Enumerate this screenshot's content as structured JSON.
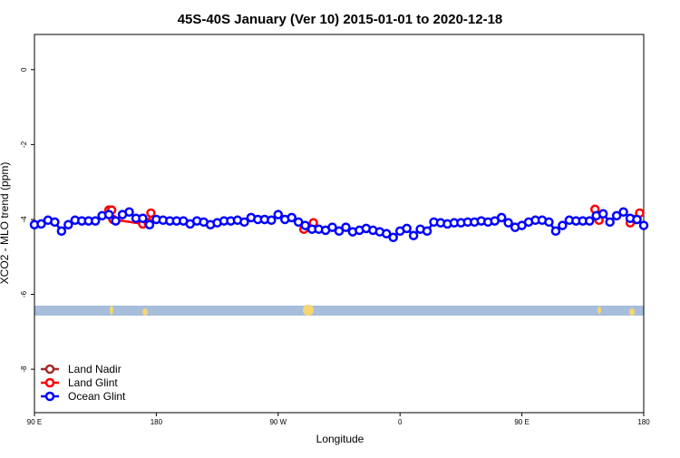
{
  "chart_data": {
    "type": "line",
    "title": "45S-40S January (Ver 10)   2015-01-01 to 2020-12-18",
    "x_label": "Longitude",
    "y_label": "XCO2 - MLO trend (ppm)",
    "xlim": [
      90,
      540
    ],
    "ylim": [
      -9.16,
      0.94
    ],
    "xticks": [
      {
        "value": 90,
        "label": "90 E"
      },
      180,
      {
        "value": 270,
        "label": "90 W"
      },
      {
        "value": 360,
        "label": "0"
      },
      {
        "value": 450,
        "label": "90 E"
      },
      {
        "value": 540,
        "label": "180"
      }
    ],
    "yticks": [
      -8,
      -6,
      -4,
      -2,
      0
    ],
    "legend": "bottom-left",
    "series": [
      {
        "name": "Land Nadir",
        "color": "#a52a2a",
        "x": [],
        "values": []
      },
      {
        "name": "Land Glint",
        "color": "#ff0000",
        "x": [
          145,
          147,
          148,
          170,
          174,
          176,
          null,
          289,
          296,
          null,
          504,
          507,
          null,
          530,
          534,
          537
        ],
        "values": [
          -3.75,
          -3.75,
          -4.0,
          -4.12,
          -4.09,
          -3.83,
          null,
          -4.26,
          -4.09,
          null,
          -3.73,
          -4.02,
          null,
          -4.09,
          -4.0,
          -3.83
        ]
      },
      {
        "name": "Ocean Glint",
        "color": "#0000ff",
        "x": [
          90,
          95,
          100,
          105,
          110,
          115,
          120,
          125,
          130,
          135,
          140,
          145,
          150,
          155,
          160,
          165,
          170,
          175,
          180,
          185,
          190,
          195,
          200,
          205,
          210,
          215,
          220,
          225,
          230,
          235,
          240,
          245,
          250,
          255,
          260,
          265,
          270,
          275,
          280,
          285,
          290,
          295,
          300,
          305,
          310,
          315,
          320,
          325,
          330,
          335,
          340,
          345,
          350,
          355,
          360,
          365,
          370,
          375,
          380,
          385,
          390,
          395,
          400,
          405,
          410,
          415,
          420,
          425,
          430,
          435,
          440,
          445,
          450,
          455,
          460,
          465,
          470,
          475,
          480,
          485,
          490,
          495,
          500,
          505,
          510,
          515,
          520,
          525,
          530,
          535,
          540
        ],
        "values": [
          -4.14,
          -4.12,
          -4.02,
          -4.07,
          -4.31,
          -4.14,
          -4.02,
          -4.04,
          -4.04,
          -4.04,
          -3.9,
          -3.87,
          -4.04,
          -3.87,
          -3.8,
          -3.97,
          -3.97,
          -4.14,
          -4.0,
          -4.02,
          -4.04,
          -4.04,
          -4.04,
          -4.12,
          -4.04,
          -4.07,
          -4.14,
          -4.09,
          -4.04,
          -4.04,
          -4.02,
          -4.07,
          -3.95,
          -4.0,
          -4.0,
          -4.02,
          -3.87,
          -4.0,
          -3.95,
          -4.07,
          -4.16,
          -4.26,
          -4.26,
          -4.29,
          -4.21,
          -4.31,
          -4.21,
          -4.33,
          -4.29,
          -4.24,
          -4.29,
          -4.33,
          -4.38,
          -4.48,
          -4.31,
          -4.24,
          -4.43,
          -4.26,
          -4.31,
          -4.07,
          -4.09,
          -4.12,
          -4.09,
          -4.09,
          -4.07,
          -4.07,
          -4.04,
          -4.07,
          -4.04,
          -3.95,
          -4.09,
          -4.21,
          -4.16,
          -4.07,
          -4.02,
          -4.02,
          -4.07,
          -4.31,
          -4.16,
          -4.02,
          -4.04,
          -4.04,
          -4.04,
          -3.9,
          -3.85,
          -4.07,
          -3.9,
          -3.8,
          -3.97,
          -4.0,
          -4.16
        ]
      }
    ]
  }
}
